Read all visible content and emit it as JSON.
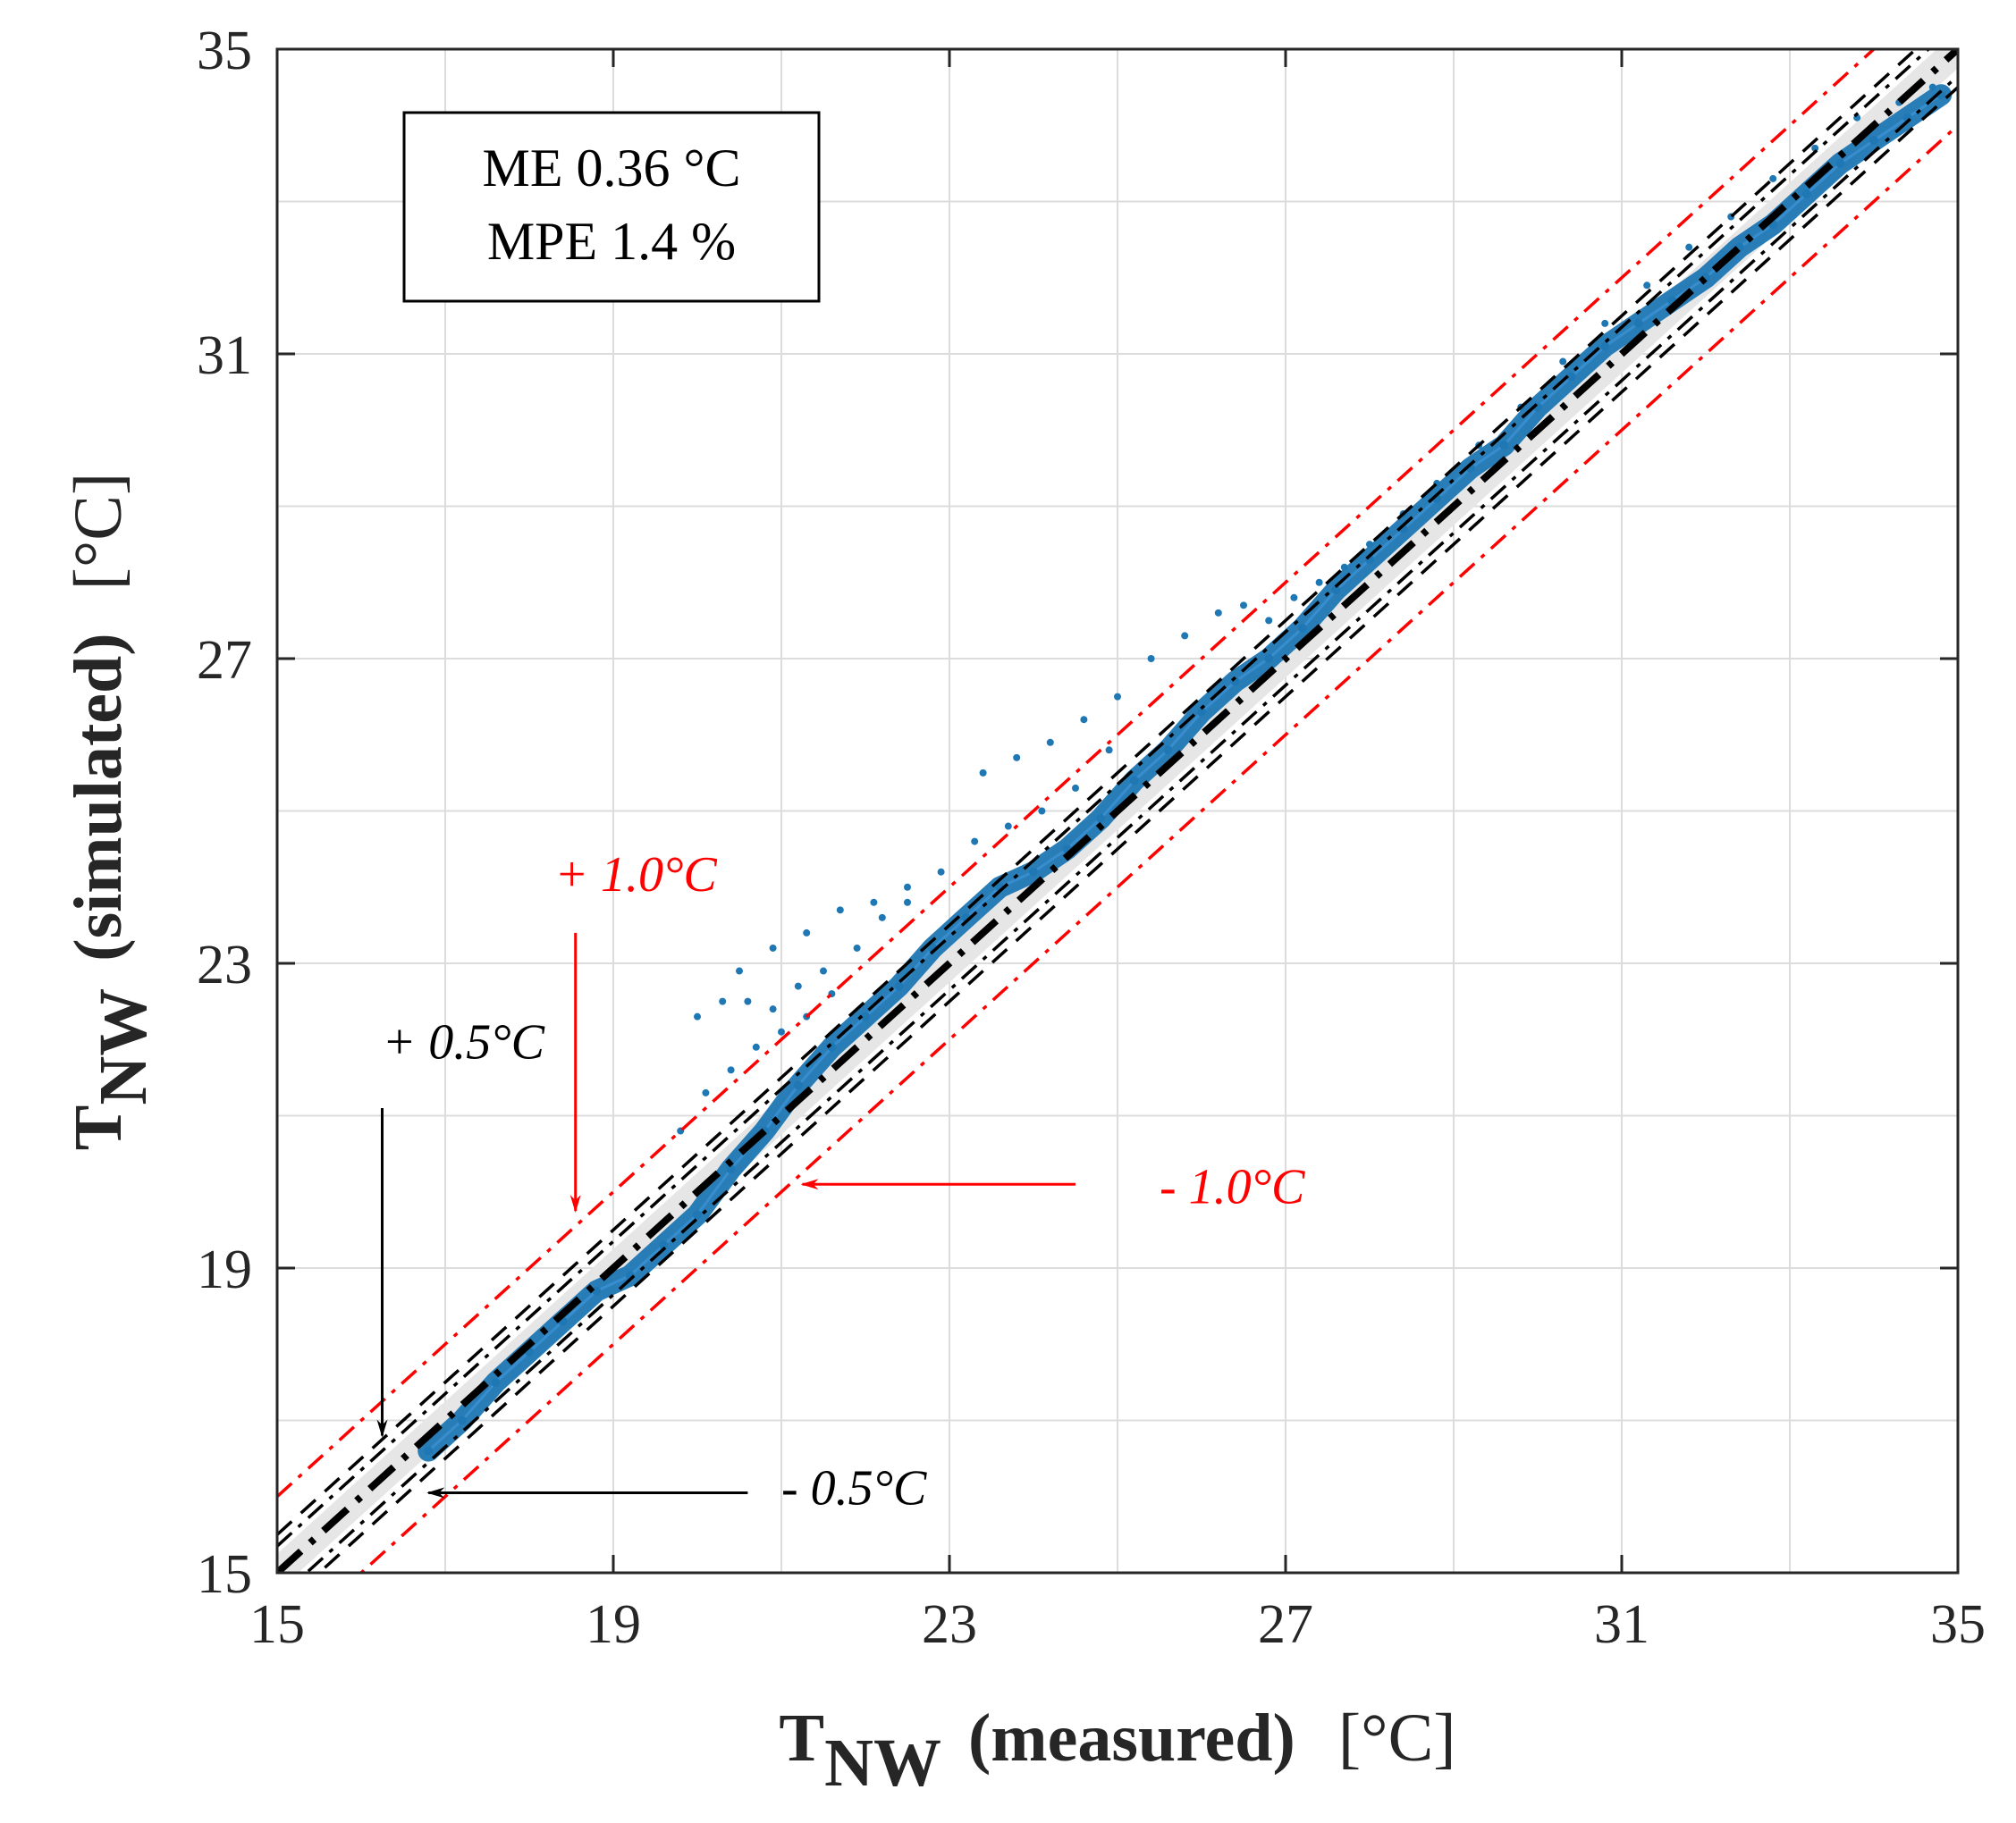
{
  "chart_data": {
    "type": "scatter",
    "title": "",
    "xlabel": {
      "main": "T",
      "sub": "NW",
      "desc": "(measured)",
      "unit": "[°C]"
    },
    "ylabel": {
      "main": "T",
      "sub": "NW",
      "desc": "(simulated)",
      "unit": "[°C]"
    },
    "xlim": [
      15,
      35
    ],
    "ylim": [
      15,
      35
    ],
    "xticks": [
      15,
      19,
      23,
      27,
      31,
      35
    ],
    "yticks": [
      15,
      19,
      23,
      27,
      31,
      35
    ],
    "minor_grid_step": 2,
    "grid": true,
    "stats": {
      "line1": "ME 0.36 °C",
      "line2": "MPE 1.4 %"
    },
    "reference_lines": [
      {
        "name": "1:1",
        "offset": 0,
        "color": "#000000",
        "style": "dash-dot-bold"
      },
      {
        "name": "+0.5",
        "offset": 0.5,
        "color": "#000000",
        "style": "dashed"
      },
      {
        "name": "-0.5",
        "offset": -0.5,
        "color": "#000000",
        "style": "dashed"
      },
      {
        "name": "+0.5-dd",
        "offset": 0.35,
        "color": "#000000",
        "style": "dash-dot"
      },
      {
        "name": "-0.5-dd",
        "offset": -0.35,
        "color": "#000000",
        "style": "dash-dot"
      },
      {
        "name": "+1.0",
        "offset": 1.0,
        "color": "#ff0000",
        "style": "dash-dot"
      },
      {
        "name": "-1.0",
        "offset": -1.0,
        "color": "#ff0000",
        "style": "dash-dot"
      }
    ],
    "band": {
      "offset": 0.25,
      "color": "#e6e6e6"
    },
    "annotations": [
      {
        "text": "+ 1.0°C",
        "color": "#ff0000",
        "text_at": [
          18.3,
          23.95
        ],
        "arrow_from": [
          18.55,
          23.4
        ],
        "arrow_to": [
          18.55,
          19.75
        ]
      },
      {
        "text": "+ 0.5°C",
        "color": "#000000",
        "text_at": [
          16.25,
          21.75
        ],
        "arrow_from": [
          16.25,
          21.1
        ],
        "arrow_to": [
          16.25,
          16.8
        ]
      },
      {
        "text": "- 1.0°C",
        "color": "#ff0000",
        "text_at": [
          25.5,
          19.85
        ],
        "arrow_from": [
          24.5,
          20.1
        ],
        "arrow_to": [
          21.25,
          20.1
        ]
      },
      {
        "text": "- 0.5°C",
        "color": "#000000",
        "text_at": [
          21.0,
          15.9
        ],
        "arrow_from": [
          20.6,
          16.05
        ],
        "arrow_to": [
          16.8,
          16.05
        ]
      }
    ],
    "series": [
      {
        "name": "TNW",
        "color": "#1f77b4",
        "trace": [
          [
            16.8,
            16.6
          ],
          [
            17.2,
            17.0
          ],
          [
            17.6,
            17.5
          ],
          [
            18.0,
            17.9
          ],
          [
            18.4,
            18.3
          ],
          [
            18.8,
            18.7
          ],
          [
            19.2,
            18.9
          ],
          [
            19.6,
            19.3
          ],
          [
            20.0,
            19.7
          ],
          [
            20.4,
            20.3
          ],
          [
            20.8,
            20.8
          ],
          [
            21.2,
            21.4
          ],
          [
            21.6,
            21.9
          ],
          [
            22.0,
            22.3
          ],
          [
            22.4,
            22.7
          ],
          [
            22.8,
            23.2
          ],
          [
            23.2,
            23.6
          ],
          [
            23.6,
            24.0
          ],
          [
            24.0,
            24.2
          ],
          [
            24.4,
            24.5
          ],
          [
            24.8,
            24.9
          ],
          [
            25.2,
            25.4
          ],
          [
            25.6,
            25.8
          ],
          [
            26.0,
            26.3
          ],
          [
            26.4,
            26.7
          ],
          [
            26.8,
            27.0
          ],
          [
            27.2,
            27.4
          ],
          [
            27.6,
            27.9
          ],
          [
            28.0,
            28.3
          ],
          [
            28.4,
            28.7
          ],
          [
            28.8,
            29.1
          ],
          [
            29.2,
            29.5
          ],
          [
            29.6,
            29.8
          ],
          [
            30.0,
            30.3
          ],
          [
            30.4,
            30.7
          ],
          [
            30.8,
            31.1
          ],
          [
            31.2,
            31.4
          ],
          [
            31.6,
            31.7
          ],
          [
            32.0,
            32.0
          ],
          [
            32.4,
            32.4
          ],
          [
            32.8,
            32.7
          ],
          [
            33.2,
            33.1
          ],
          [
            33.6,
            33.5
          ],
          [
            34.0,
            33.8
          ],
          [
            34.4,
            34.1
          ],
          [
            34.8,
            34.4
          ]
        ],
        "scatter_points": [
          [
            20.0,
            22.3
          ],
          [
            20.3,
            22.5
          ],
          [
            20.6,
            22.5
          ],
          [
            20.9,
            22.4
          ],
          [
            21.2,
            22.7
          ],
          [
            21.5,
            22.9
          ],
          [
            21.9,
            23.2
          ],
          [
            22.2,
            23.6
          ],
          [
            22.5,
            23.8
          ],
          [
            20.5,
            22.9
          ],
          [
            20.9,
            23.2
          ],
          [
            21.3,
            23.4
          ],
          [
            21.7,
            23.7
          ],
          [
            22.1,
            23.8
          ],
          [
            22.5,
            24.0
          ],
          [
            22.9,
            24.2
          ],
          [
            23.3,
            24.6
          ],
          [
            23.7,
            24.8
          ],
          [
            24.1,
            25.0
          ],
          [
            24.5,
            25.3
          ],
          [
            24.9,
            25.8
          ],
          [
            23.4,
            25.5
          ],
          [
            23.8,
            25.7
          ],
          [
            24.2,
            25.9
          ],
          [
            24.6,
            26.2
          ],
          [
            25.0,
            26.5
          ],
          [
            25.4,
            27.0
          ],
          [
            25.8,
            27.3
          ],
          [
            26.2,
            27.6
          ],
          [
            26.5,
            27.7
          ],
          [
            26.8,
            27.5
          ],
          [
            27.1,
            27.8
          ],
          [
            27.4,
            28.0
          ],
          [
            27.7,
            28.2
          ],
          [
            28.0,
            28.5
          ],
          [
            28.4,
            28.9
          ],
          [
            28.8,
            29.3
          ],
          [
            29.3,
            29.8
          ],
          [
            29.8,
            30.3
          ],
          [
            30.3,
            30.9
          ],
          [
            30.8,
            31.4
          ],
          [
            31.3,
            31.9
          ],
          [
            31.8,
            32.4
          ],
          [
            32.3,
            32.8
          ],
          [
            32.8,
            33.3
          ],
          [
            33.3,
            33.7
          ],
          [
            33.8,
            34.1
          ],
          [
            34.3,
            34.3
          ],
          [
            34.7,
            34.5
          ],
          [
            19.8,
            20.8
          ],
          [
            20.1,
            21.3
          ],
          [
            20.4,
            21.6
          ],
          [
            20.7,
            21.9
          ],
          [
            21.0,
            22.1
          ],
          [
            21.3,
            22.3
          ],
          [
            21.6,
            22.6
          ]
        ]
      }
    ]
  }
}
